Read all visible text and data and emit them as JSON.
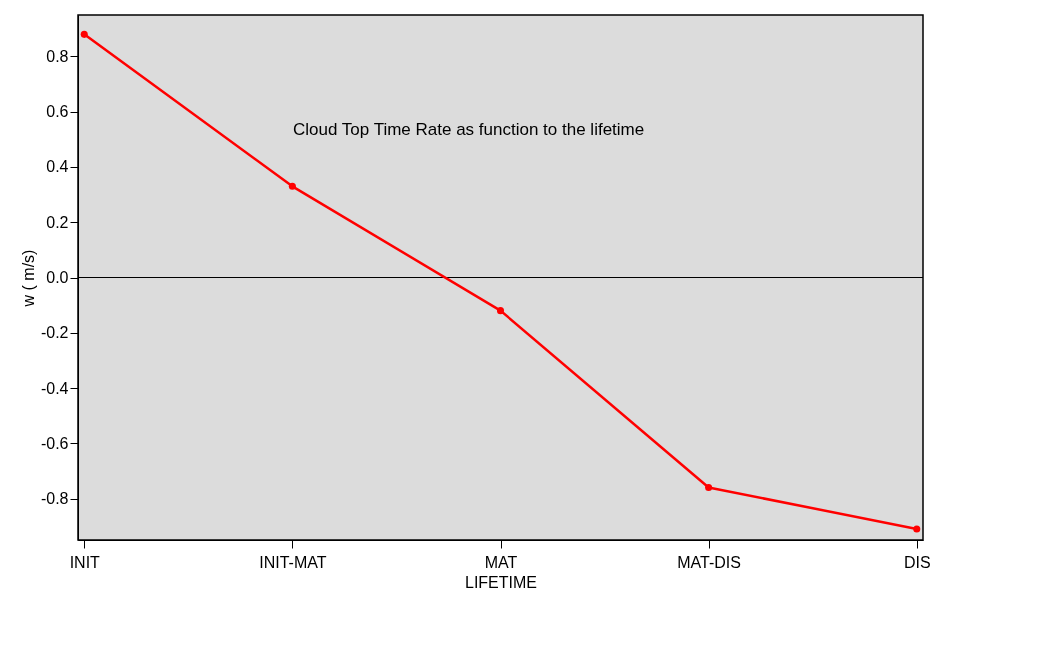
{
  "chart_data": {
    "type": "line",
    "xlabel": "LIFETIME",
    "ylabel": "w ( m/s)",
    "annotations": [
      "Cloud Top Time Rate as function to the lifetime"
    ],
    "categories": [
      "INIT",
      "INIT-MAT",
      "MAT",
      "MAT-DIS",
      "DIS"
    ],
    "series": [
      {
        "color": "#ff0000",
        "values": [
          0.88,
          0.33,
          -0.12,
          -0.76,
          -0.91
        ]
      }
    ],
    "ylim": [
      -0.95,
      0.95
    ],
    "yticks": [
      {
        "value": -0.8,
        "label": "-0.8"
      },
      {
        "value": -0.6,
        "label": "-0.6"
      },
      {
        "value": -0.4,
        "label": "-0.4"
      },
      {
        "value": -0.2,
        "label": "-0.2"
      },
      {
        "value": 0,
        "label": "0.0"
      },
      {
        "value": 0.2,
        "label": "0.2"
      },
      {
        "value": 0.4,
        "label": "0.4"
      },
      {
        "value": 0.6,
        "label": "0.6"
      },
      {
        "value": 0.8,
        "label": "0.8"
      }
    ],
    "ref_lines": [
      {
        "axis": "y",
        "value": 0,
        "color": "#000000"
      }
    ],
    "grid": false,
    "marker": "circle",
    "line_style": "solid"
  }
}
